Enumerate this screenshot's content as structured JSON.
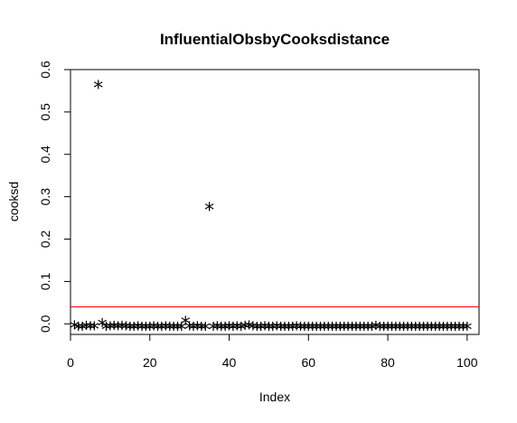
{
  "chart_data": {
    "type": "scatter",
    "title": "InfluentialObsbyCooksdistance",
    "xlabel": "Index",
    "ylabel": "cooksd",
    "xlim": [
      0,
      103
    ],
    "ylim": [
      -0.025,
      0.6
    ],
    "x_ticks": [
      0,
      20,
      40,
      60,
      80,
      100
    ],
    "y_ticks": [
      0.0,
      0.1,
      0.2,
      0.3,
      0.4,
      0.5,
      0.6
    ],
    "y_tick_labels": [
      "0.0",
      "0.1",
      "0.2",
      "0.3",
      "0.4",
      "0.5",
      "0.6"
    ],
    "marker": "*",
    "point_color": "#000000",
    "threshold": {
      "value": 0.04,
      "color": "#ff0000"
    },
    "series": [
      {
        "name": "cooksd",
        "x": [
          1,
          2,
          3,
          4,
          5,
          6,
          7,
          8,
          9,
          10,
          11,
          12,
          13,
          14,
          15,
          16,
          17,
          18,
          19,
          20,
          21,
          22,
          23,
          24,
          25,
          26,
          27,
          28,
          29,
          30,
          31,
          32,
          33,
          34,
          35,
          36,
          37,
          38,
          39,
          40,
          41,
          42,
          43,
          44,
          45,
          46,
          47,
          48,
          49,
          50,
          51,
          52,
          53,
          54,
          55,
          56,
          57,
          58,
          59,
          60,
          61,
          62,
          63,
          64,
          65,
          66,
          67,
          68,
          69,
          70,
          71,
          72,
          73,
          74,
          75,
          76,
          77,
          78,
          79,
          80,
          81,
          82,
          83,
          84,
          85,
          86,
          87,
          88,
          89,
          90,
          91,
          92,
          93,
          94,
          95,
          96,
          97,
          98,
          99,
          100
        ],
        "values": [
          0.003,
          0.0,
          0.0,
          0.002,
          0.001,
          0.001,
          0.57,
          0.008,
          0.0,
          0.001,
          0.002,
          0.001,
          0.002,
          0.001,
          0.0,
          0.0,
          0.001,
          0.0,
          0.0,
          0.0,
          0.001,
          0.0,
          0.0,
          0.001,
          0.0,
          0.0,
          0.0,
          0.0,
          0.013,
          0.001,
          0.0,
          0.001,
          0.0,
          0.0,
          0.282,
          0.0,
          0.001,
          0.0,
          0.0,
          0.001,
          0.0,
          0.001,
          0.0,
          0.002,
          0.003,
          0.001,
          0.0,
          0.0,
          0.001,
          0.0,
          0.0,
          0.001,
          0.0,
          0.0,
          0.0,
          0.0,
          0.001,
          0.0,
          0.0,
          0.0,
          0.0,
          0.0,
          0.0,
          0.0,
          0.0,
          0.0,
          0.0,
          0.0,
          0.0,
          0.0,
          0.0,
          0.0,
          0.0,
          0.0,
          0.0,
          0.0,
          0.002,
          0.0,
          0.0,
          0.0,
          0.0,
          0.0,
          0.0,
          0.0,
          0.0,
          0.0,
          0.0,
          0.0,
          0.0,
          0.0,
          0.0,
          0.0,
          0.0,
          0.0,
          0.0,
          0.0,
          0.0,
          0.0,
          0.0,
          0.0
        ]
      }
    ]
  }
}
